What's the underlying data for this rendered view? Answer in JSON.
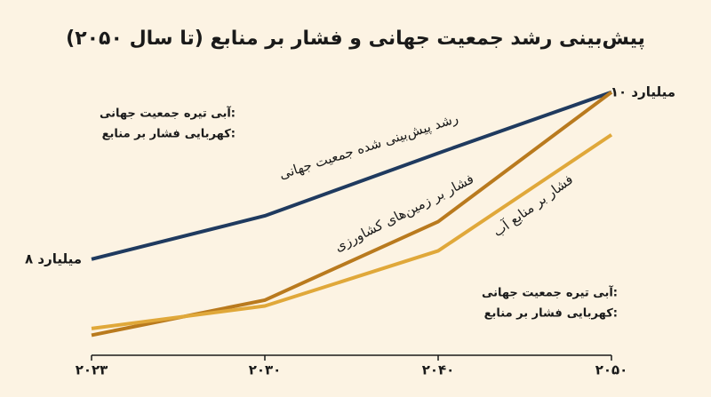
{
  "chart_data": {
    "type": "line",
    "title": "پیش‌بینی رشد جمعیت جهانی و فشار بر منابع (تا سال ۲۰۵۰)",
    "categories": [
      "۲۰۲۳",
      "۲۰۳۰",
      "۲۰۴۰",
      "۲۰۵۰"
    ],
    "ylim": [
      6.85,
      10.2
    ],
    "series": [
      {
        "name": "رشد پیش‌بینی شده جمعیت جهانی",
        "color": "#1f3a5f",
        "values": [
          8,
          8.52,
          9.27,
          10
        ],
        "value_labels": [
          "۸ میلیارد",
          null,
          null,
          "۱۰ میلیارد"
        ]
      },
      {
        "name": "فشار بر زمین‌های کشاورزی",
        "color": "#b97a1e",
        "values": [
          7.09,
          7.51,
          8.45,
          10
        ]
      },
      {
        "name": "فشار بر منابع آب",
        "color": "#e0a83a",
        "values": [
          7.17,
          7.44,
          8.1,
          9.49
        ]
      }
    ],
    "notes": [
      [
        {
          "key": "آبی تیره:",
          "text": "جمعیت جهانی"
        },
        {
          "key": "کهربایی:",
          "text": "فشار بر منابع"
        }
      ],
      [
        {
          "key": "آبی تیره:",
          "text": "جمعیت جهانی"
        },
        {
          "key": "کهربایی:",
          "text": "فشار بر منابع"
        }
      ]
    ]
  }
}
